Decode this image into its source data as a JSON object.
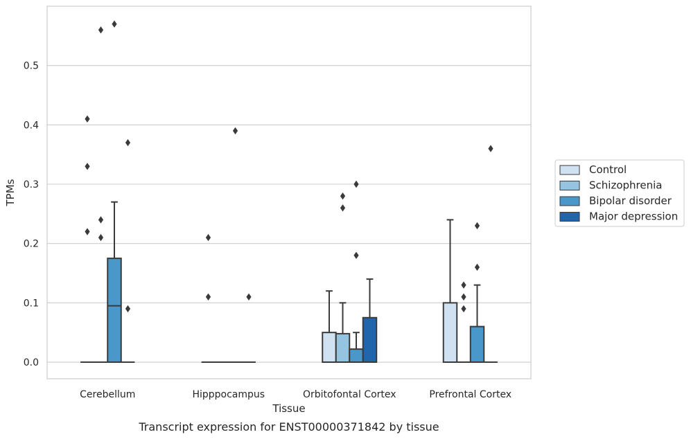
{
  "chart_data": {
    "type": "boxplot",
    "xlabel": "Tissue",
    "ylabel": "TPMs",
    "caption": "Transcript expression for ENST00000371842 by tissue",
    "ylim": [
      -0.028,
      0.6
    ],
    "yticks": [
      0.0,
      0.1,
      0.2,
      0.3,
      0.4,
      0.5
    ],
    "ytick_labels": [
      "0.0",
      "0.1",
      "0.2",
      "0.3",
      "0.4",
      "0.5"
    ],
    "grid": true,
    "legend_position": "right",
    "categories": [
      "Cerebellum",
      "Hipppocampus",
      "Orbitofontal Cortex",
      "Prefrontal Cortex"
    ],
    "series": [
      {
        "name": "Control",
        "color": "#d0e1f2",
        "boxes": [
          {
            "q1": 0,
            "median": 0,
            "q3": 0,
            "whisker_low": 0,
            "whisker_high": 0,
            "outliers": [
              0.22,
              0.33,
              0.41
            ]
          },
          {
            "q1": 0,
            "median": 0,
            "q3": 0,
            "whisker_low": 0,
            "whisker_high": 0,
            "outliers": [
              0.11,
              0.21
            ]
          },
          {
            "q1": 0,
            "median": 0,
            "q3": 0.05,
            "whisker_low": 0,
            "whisker_high": 0.12,
            "outliers": []
          },
          {
            "q1": 0,
            "median": 0,
            "q3": 0.1,
            "whisker_low": 0,
            "whisker_high": 0.24,
            "outliers": []
          }
        ]
      },
      {
        "name": "Schizophrenia",
        "color": "#94c4df",
        "boxes": [
          {
            "q1": 0,
            "median": 0,
            "q3": 0,
            "whisker_low": 0,
            "whisker_high": 0,
            "outliers": [
              0.21,
              0.24,
              0.56
            ]
          },
          {
            "q1": 0,
            "median": 0,
            "q3": 0,
            "whisker_low": 0,
            "whisker_high": 0,
            "outliers": []
          },
          {
            "q1": 0,
            "median": 0,
            "q3": 0.048,
            "whisker_low": 0,
            "whisker_high": 0.1,
            "outliers": [
              0.26,
              0.28
            ]
          },
          {
            "q1": 0,
            "median": 0,
            "q3": 0,
            "whisker_low": 0,
            "whisker_high": 0,
            "outliers": [
              0.09,
              0.11,
              0.13
            ]
          }
        ]
      },
      {
        "name": "Bipolar disorder",
        "color": "#4a98c9",
        "boxes": [
          {
            "q1": 0,
            "median": 0.095,
            "q3": 0.175,
            "whisker_low": 0,
            "whisker_high": 0.27,
            "outliers": [
              0.57
            ]
          },
          {
            "q1": 0,
            "median": 0,
            "q3": 0,
            "whisker_low": 0,
            "whisker_high": 0,
            "outliers": [
              0.39
            ]
          },
          {
            "q1": 0,
            "median": 0,
            "q3": 0.022,
            "whisker_low": 0,
            "whisker_high": 0.05,
            "outliers": [
              0.18,
              0.3
            ]
          },
          {
            "q1": 0,
            "median": 0,
            "q3": 0.06,
            "whisker_low": 0,
            "whisker_high": 0.13,
            "outliers": [
              0.16,
              0.23
            ]
          }
        ]
      },
      {
        "name": "Major depression",
        "color": "#2166ac",
        "boxes": [
          {
            "q1": 0,
            "median": 0,
            "q3": 0,
            "whisker_low": 0,
            "whisker_high": 0,
            "outliers": [
              0.09,
              0.37
            ]
          },
          {
            "q1": 0,
            "median": 0,
            "q3": 0,
            "whisker_low": 0,
            "whisker_high": 0,
            "outliers": [
              0.11
            ]
          },
          {
            "q1": 0,
            "median": 0,
            "q3": 0.075,
            "whisker_low": 0,
            "whisker_high": 0.14,
            "outliers": []
          },
          {
            "q1": 0,
            "median": 0,
            "q3": 0,
            "whisker_low": 0,
            "whisker_high": 0,
            "outliers": [
              0.36
            ]
          }
        ]
      }
    ],
    "colors": {
      "grid": "#cccccc",
      "frame": "#cccccc",
      "edge": "#3a3a3a",
      "outlier": "#3a3a3a",
      "legend_frame": "#cccccc"
    }
  }
}
